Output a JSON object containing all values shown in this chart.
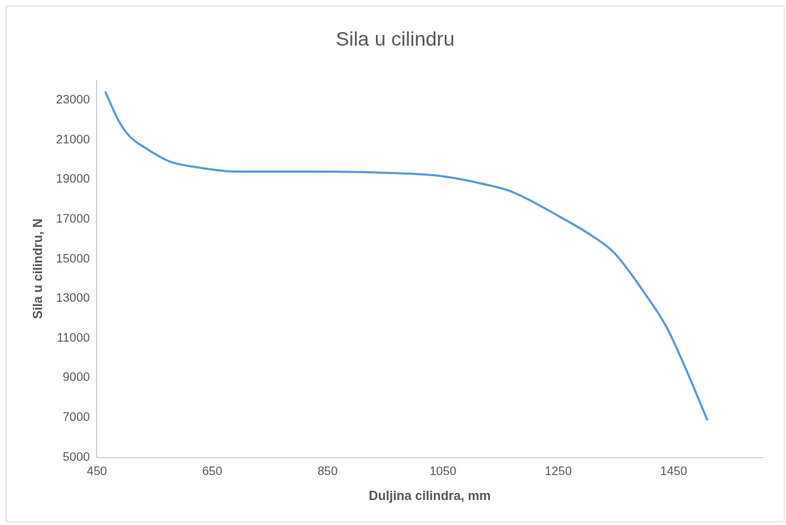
{
  "chart_data": {
    "type": "line",
    "title": "Sila u cilindru",
    "xlabel": "Duljina cilindra, mm",
    "ylabel": "Sila u cilindru, N",
    "x": [
      465,
      487,
      506,
      539,
      577,
      628,
      693,
      821,
      937,
      1039,
      1116,
      1168,
      1251,
      1309,
      1347,
      1399,
      1437,
      1469,
      1508
    ],
    "series": [
      {
        "color": "#5b9bd5",
        "values": [
          23400,
          22000,
          21200,
          20500,
          19900,
          19600,
          19400,
          19400,
          19350,
          19200,
          18800,
          18400,
          17150,
          16150,
          15300,
          13300,
          11600,
          9600,
          6900
        ]
      }
    ],
    "xlim": [
      450,
      1604
    ],
    "xticks": [
      450,
      650,
      850,
      1050,
      1250,
      1450
    ],
    "ylim": [
      5000,
      24000
    ],
    "yticks": [
      5000,
      7000,
      9000,
      11000,
      13000,
      15000,
      17000,
      19000,
      21000,
      23000
    ],
    "grid": false,
    "legend": false,
    "marker": "none",
    "line_style": "solid"
  }
}
